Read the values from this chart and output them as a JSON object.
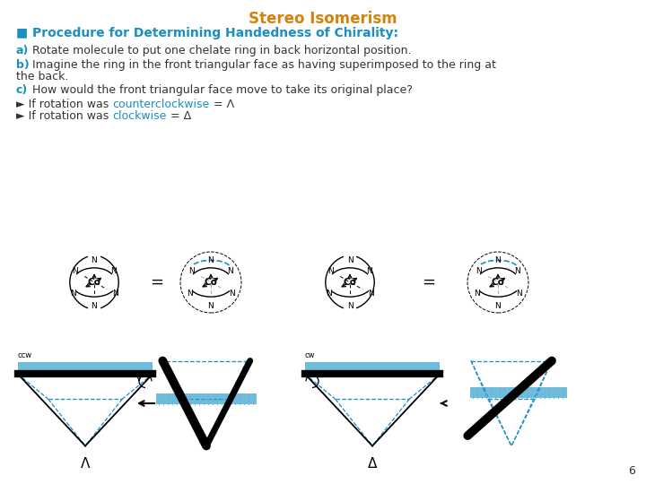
{
  "title": "Stereo Isomerism",
  "title_color": "#D4820A",
  "title_fontsize": 12,
  "bg_color": "#FFFFFF",
  "section_header": "■ Procedure for Determining Handedness of Chirality:",
  "section_header_color": "#1A8FC1",
  "section_header_fontsize": 10,
  "text_color": "#333333",
  "text_fontsize": 9,
  "blue_color": "#1A8FC1",
  "page_number": "6",
  "black": "#000000",
  "blue_c": "#1A8FC1"
}
